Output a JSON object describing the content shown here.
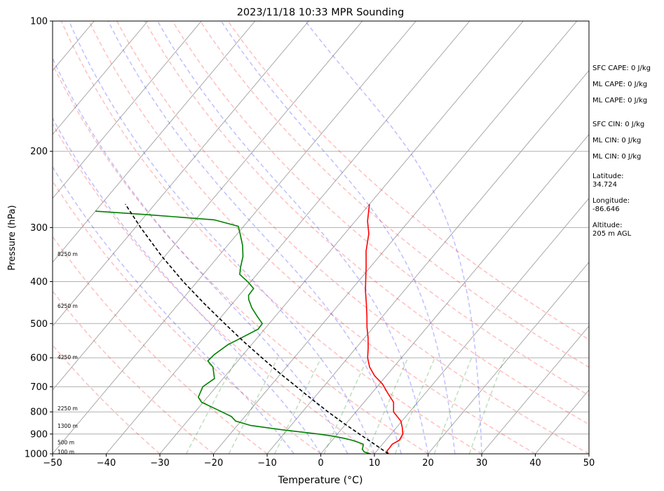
{
  "chart_data": {
    "type": "line",
    "title": "2023/11/18 10:33 MPR Sounding",
    "xlabel": "Temperature (°C)",
    "ylabel": "Pressure (hPa)",
    "xlim": [
      -50,
      50
    ],
    "ylim": [
      1000,
      100
    ],
    "y_scale": "log",
    "skew": true,
    "grid": true,
    "x_ticks": [
      "−50",
      "−40",
      "−30",
      "−20",
      "−10",
      "0",
      "10",
      "20",
      "30",
      "40",
      "50"
    ],
    "y_ticks": [
      "100",
      "200",
      "300",
      "400",
      "500",
      "600",
      "700",
      "800",
      "900",
      "1000"
    ],
    "y_tick_values": [
      100,
      200,
      300,
      400,
      500,
      600,
      700,
      800,
      900,
      1000
    ],
    "height_labels": [
      {
        "text": "8250 m",
        "p": 345
      },
      {
        "text": "6250 m",
        "p": 455
      },
      {
        "text": "4250 m",
        "p": 597
      },
      {
        "text": "2250 m",
        "p": 785
      },
      {
        "text": "1300 m",
        "p": 862
      },
      {
        "text": "500 m",
        "p": 940
      },
      {
        "text": "100 m",
        "p": 988
      }
    ],
    "series": [
      {
        "color": "#ff0000",
        "points": [
          [
            1000,
            12.6
          ],
          [
            985,
            11.9
          ],
          [
            970,
            11.9
          ],
          [
            950,
            11.8
          ],
          [
            930,
            12.5
          ],
          [
            900,
            12.2
          ],
          [
            870,
            11.1
          ],
          [
            840,
            9.8
          ],
          [
            800,
            7.0
          ],
          [
            760,
            5.5
          ],
          [
            720,
            2.7
          ],
          [
            690,
            0.6
          ],
          [
            660,
            -2.2
          ],
          [
            630,
            -4.5
          ],
          [
            600,
            -6.3
          ],
          [
            570,
            -7.7
          ],
          [
            540,
            -9.3
          ],
          [
            510,
            -11.2
          ],
          [
            480,
            -13.0
          ],
          [
            450,
            -15.0
          ],
          [
            420,
            -17.2
          ],
          [
            400,
            -18.6
          ],
          [
            370,
            -20.8
          ],
          [
            340,
            -23.3
          ],
          [
            310,
            -25.5
          ],
          [
            290,
            -27.7
          ],
          [
            265,
            -30.0
          ]
        ]
      },
      {
        "color": "#008000",
        "points": [
          [
            1000,
            9.3
          ],
          [
            990,
            7.8
          ],
          [
            975,
            7.0
          ],
          [
            960,
            6.7
          ],
          [
            950,
            6.4
          ],
          [
            940,
            5.1
          ],
          [
            930,
            3.7
          ],
          [
            920,
            1.8
          ],
          [
            910,
            -0.6
          ],
          [
            900,
            -3.5
          ],
          [
            880,
            -11.0
          ],
          [
            860,
            -17.5
          ],
          [
            840,
            -21.0
          ],
          [
            820,
            -22.5
          ],
          [
            790,
            -26.3
          ],
          [
            760,
            -30.3
          ],
          [
            740,
            -31.7
          ],
          [
            700,
            -32.5
          ],
          [
            670,
            -31.6
          ],
          [
            630,
            -33.7
          ],
          [
            610,
            -35.6
          ],
          [
            590,
            -35.4
          ],
          [
            560,
            -34.4
          ],
          [
            540,
            -33.0
          ],
          [
            515,
            -31.2
          ],
          [
            500,
            -31.3
          ],
          [
            480,
            -33.5
          ],
          [
            460,
            -35.7
          ],
          [
            440,
            -37.6
          ],
          [
            430,
            -38.3
          ],
          [
            415,
            -38.4
          ],
          [
            400,
            -40.6
          ],
          [
            385,
            -43.2
          ],
          [
            370,
            -44.2
          ],
          [
            350,
            -45.4
          ],
          [
            330,
            -47.2
          ],
          [
            310,
            -49.5
          ],
          [
            298,
            -51.0
          ],
          [
            288,
            -56.5
          ],
          [
            280,
            -70.0
          ],
          [
            275,
            -80.0
          ]
        ]
      },
      {
        "color": "#000000",
        "dashed": true,
        "points": [
          [
            1000,
            12.6
          ],
          [
            950,
            8.5
          ],
          [
            900,
            4.1
          ],
          [
            850,
            -0.5
          ],
          [
            800,
            -5.2
          ],
          [
            750,
            -10.0
          ],
          [
            700,
            -15.0
          ],
          [
            650,
            -20.4
          ],
          [
            600,
            -26.0
          ],
          [
            550,
            -32.0
          ],
          [
            500,
            -38.3
          ],
          [
            450,
            -45.2
          ],
          [
            400,
            -52.6
          ],
          [
            350,
            -60.5
          ],
          [
            300,
            -69.0
          ],
          [
            265,
            -75.5
          ]
        ]
      }
    ],
    "reference_lines": {
      "dry_adiabats_theta_c": [
        -30,
        -20,
        -10,
        0,
        10,
        20,
        30,
        40,
        50,
        60,
        70,
        80,
        90
      ],
      "moist_adiabats_t1000_c": [
        -5,
        0,
        5,
        10,
        15,
        20,
        25,
        30
      ],
      "mixing_ratio_g_per_kg": [
        0.5,
        1,
        2,
        4,
        7,
        10,
        16,
        24
      ]
    }
  },
  "sidebar": [
    "SFC CAPE: 0 J/kg",
    "ML CAPE: 0 J/kg",
    "ML CAPE: 0 J/kg",
    "SFC CIN: 0 J/kg",
    "ML CIN: 0 J/kg",
    "ML CIN: 0 J/kg",
    "Latitude:",
    "34.724",
    "Longitude:",
    "-86.646",
    "Altitude:",
    "205 m AGL"
  ]
}
